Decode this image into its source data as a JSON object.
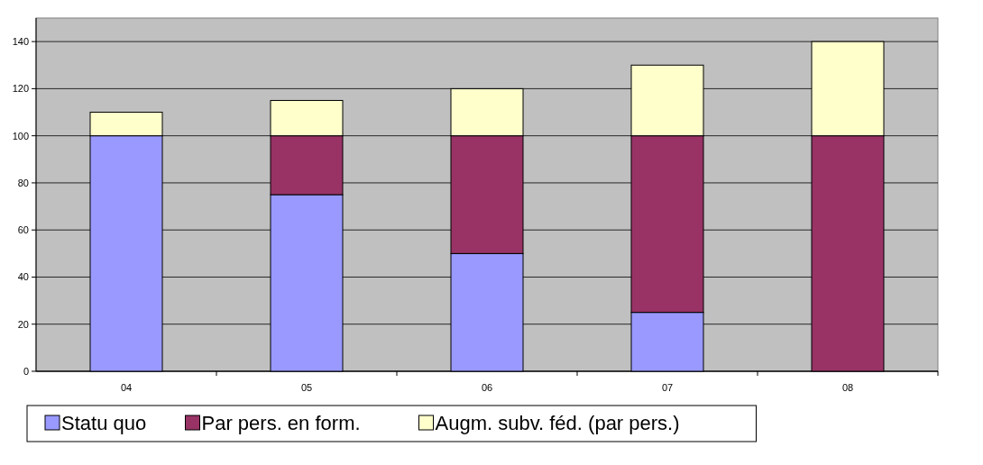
{
  "chart_data": {
    "type": "bar",
    "stacked": true,
    "categories": [
      "04",
      "05",
      "06",
      "07",
      "08"
    ],
    "series": [
      {
        "name": "Statu quo",
        "color": "#9999ff",
        "values": [
          100,
          75,
          50,
          25,
          0
        ]
      },
      {
        "name": "Par pers. en form.",
        "color": "#993366",
        "values": [
          0,
          25,
          50,
          75,
          100
        ]
      },
      {
        "name": "Augm. subv. féd. (par pers.)",
        "color": "#ffffcc",
        "values": [
          10,
          15,
          20,
          30,
          40
        ]
      }
    ],
    "ylim": [
      0,
      150
    ],
    "yticks": [
      0,
      20,
      40,
      60,
      80,
      100,
      120,
      140
    ],
    "grid": "y",
    "legend": "bottom"
  }
}
